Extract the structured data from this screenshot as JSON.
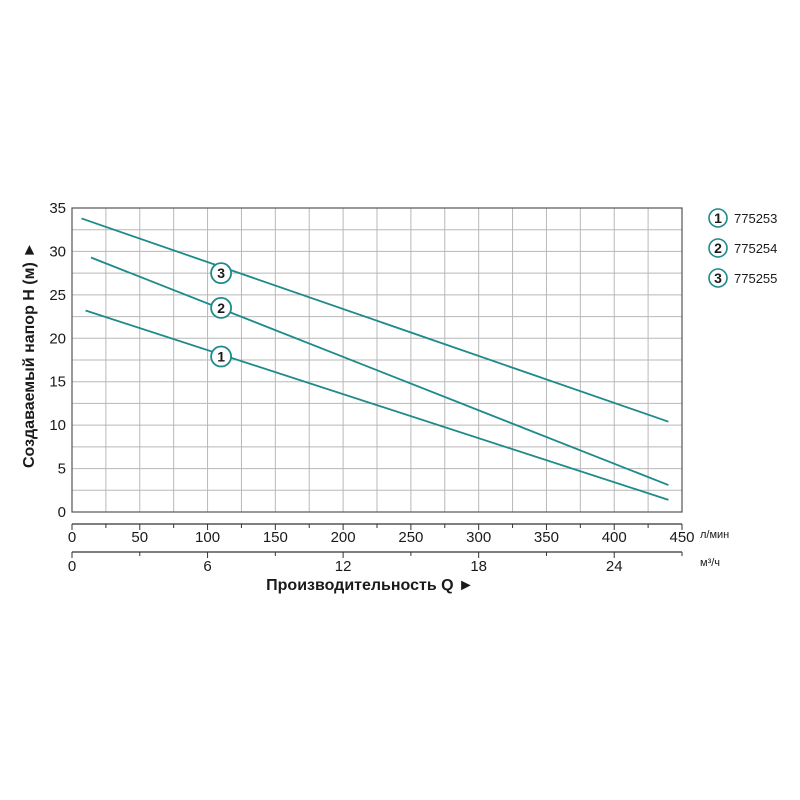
{
  "chart_data": {
    "type": "line",
    "xlabel": "Производительность Q ►",
    "ylabel": "Создаваемый напор H (м) ►",
    "x_unit_primary": "л/мин",
    "x_unit_secondary": "м³/ч",
    "xlim": [
      0,
      450
    ],
    "ylim": [
      0,
      35
    ],
    "x_ticks": [
      0,
      50,
      100,
      150,
      200,
      250,
      300,
      350,
      400,
      450
    ],
    "y_ticks": [
      0,
      5,
      10,
      15,
      20,
      25,
      30,
      35
    ],
    "x2_ticks": [
      0,
      6,
      12,
      18,
      24
    ],
    "grid": true,
    "legend_position": "right",
    "series": [
      {
        "marker": "1",
        "name": "775253",
        "color": "#1e8a8a",
        "points": [
          [
            10,
            23.2
          ],
          [
            440,
            1.4
          ]
        ],
        "label_at": [
          110,
          17.9
        ]
      },
      {
        "marker": "2",
        "name": "775254",
        "color": "#1e8a8a",
        "points": [
          [
            14,
            29.3
          ],
          [
            440,
            3.1
          ]
        ],
        "label_at": [
          110,
          23.5
        ]
      },
      {
        "marker": "3",
        "name": "775255",
        "color": "#1e8a8a",
        "points": [
          [
            7,
            33.8
          ],
          [
            440,
            10.4
          ]
        ],
        "label_at": [
          110,
          27.5
        ]
      }
    ]
  }
}
